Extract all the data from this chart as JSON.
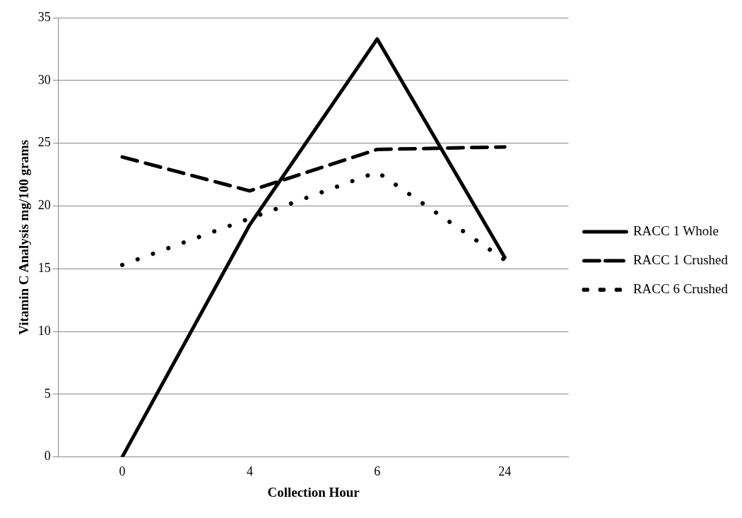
{
  "chart_data": {
    "type": "line",
    "xlabel": "Collection Hour",
    "ylabel": "Vitamin C Analysis mg/100 grams",
    "categories": [
      "0",
      "4",
      "6",
      "24"
    ],
    "series": [
      {
        "name": "RACC 1 Whole",
        "color": "#000000",
        "line_style": "solid",
        "values": [
          0,
          18.5,
          33.3,
          15.9
        ]
      },
      {
        "name": "RACC 1 Crushed",
        "color": "#000000",
        "line_style": "dashed",
        "values": [
          23.9,
          21.2,
          24.5,
          24.7
        ]
      },
      {
        "name": "RACC 6 Crushed",
        "color": "#000000",
        "line_style": "dotted",
        "values": [
          15.3,
          19.0,
          22.7,
          15.7
        ]
      }
    ],
    "ylim": [
      0,
      35
    ],
    "yticks": [
      0,
      5,
      10,
      15,
      20,
      25,
      30,
      35
    ],
    "grid": "y",
    "legend": "right",
    "marker": "none"
  }
}
